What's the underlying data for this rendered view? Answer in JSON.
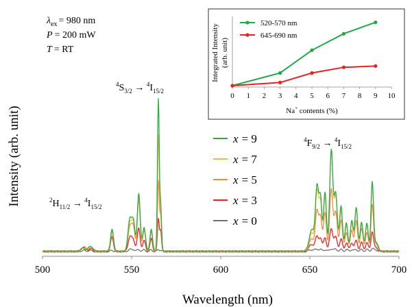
{
  "chart_data": [
    {
      "type": "line",
      "xlabel": "Wavelength (nm)",
      "ylabel": "Intensity (arb. unit)",
      "xlim": [
        500,
        700
      ],
      "xticks": [
        "500",
        "550",
        "600",
        "650",
        "700"
      ],
      "conditions": {
        "lambda_symbol": "λ",
        "lambda_sub": "ex",
        "lambda_value": "= 980 nm",
        "power_symbol": "P",
        "power_value": "= 200 mW",
        "temp_symbol": "T",
        "temp_value": "= RT"
      },
      "annotations": [
        {
          "id": "s32",
          "text": "4S3/2 → 4I15/2",
          "parts": [
            "4",
            "S",
            "3/2",
            " → ",
            "4",
            "I",
            "15/2"
          ],
          "x": 563
        },
        {
          "id": "h112",
          "text": "2H11/2 → 4I15/2",
          "parts": [
            "2",
            "H",
            "11/2",
            " → ",
            "4",
            "I",
            "15/2"
          ],
          "x": 527
        },
        {
          "id": "f92",
          "text": "4F9/2 → 4I15/2",
          "parts": [
            "4",
            "F",
            "9/2",
            " → ",
            "4",
            "I",
            "15/2"
          ],
          "x": 663
        }
      ],
      "legend": {
        "placement": "center",
        "entries": [
          {
            "label_var": "x",
            "label_value": "= 9",
            "color": "#2eaa4a"
          },
          {
            "label_var": "x",
            "label_value": "= 7",
            "color": "#f0c020"
          },
          {
            "label_var": "x",
            "label_value": "= 5",
            "color": "#f08a48"
          },
          {
            "label_var": "x",
            "label_value": "= 3",
            "color": "#e82020"
          },
          {
            "label_var": "x",
            "label_value": "= 0",
            "color": "#707070"
          }
        ]
      },
      "peaks": [
        {
          "c": 523,
          "w": 1.2,
          "a": [
            0.02,
            0.02,
            0.025,
            0.025,
            0.005
          ]
        },
        {
          "c": 527,
          "w": 1.2,
          "a": [
            0.03,
            0.025,
            0.025,
            0.015,
            0.005
          ]
        },
        {
          "c": 539,
          "w": 0.8,
          "a": [
            0.13,
            0.12,
            0.11,
            0.08,
            0.005
          ]
        },
        {
          "c": 549,
          "w": 1.0,
          "a": [
            0.18,
            0.16,
            0.14,
            0.08,
            0.01
          ]
        },
        {
          "c": 551,
          "w": 0.9,
          "a": [
            0.16,
            0.15,
            0.13,
            0.06,
            0.01
          ]
        },
        {
          "c": 554,
          "w": 0.8,
          "a": [
            0.33,
            0.31,
            0.29,
            0.13,
            0.01
          ]
        },
        {
          "c": 557,
          "w": 0.8,
          "a": [
            0.14,
            0.13,
            0.12,
            0.06,
            0.008
          ]
        },
        {
          "c": 561,
          "w": 0.7,
          "a": [
            0.13,
            0.12,
            0.11,
            0.07,
            0.008
          ]
        },
        {
          "c": 565,
          "w": 0.5,
          "a": [
            0.86,
            0.65,
            0.39,
            0.18,
            0.01
          ]
        },
        {
          "c": 566.3,
          "w": 0.5,
          "a": [
            0.25,
            0.22,
            0.2,
            0.12,
            0.008
          ]
        },
        {
          "c": 651,
          "w": 1.4,
          "a": [
            0.12,
            0.1,
            0.07,
            0.04,
            0.01
          ]
        },
        {
          "c": 654,
          "w": 0.9,
          "a": [
            0.36,
            0.33,
            0.22,
            0.08,
            0.012
          ]
        },
        {
          "c": 656,
          "w": 0.8,
          "a": [
            0.29,
            0.27,
            0.19,
            0.07,
            0.01
          ]
        },
        {
          "c": 658.5,
          "w": 0.8,
          "a": [
            0.33,
            0.31,
            0.22,
            0.08,
            0.01
          ]
        },
        {
          "c": 662,
          "w": 0.9,
          "a": [
            0.57,
            0.56,
            0.35,
            0.13,
            0.015
          ]
        },
        {
          "c": 664.5,
          "w": 0.9,
          "a": [
            0.33,
            0.31,
            0.22,
            0.08,
            0.012
          ]
        },
        {
          "c": 667.5,
          "w": 0.8,
          "a": [
            0.26,
            0.24,
            0.18,
            0.07,
            0.01
          ]
        },
        {
          "c": 670.5,
          "w": 0.8,
          "a": [
            0.16,
            0.15,
            0.11,
            0.05,
            0.01
          ]
        },
        {
          "c": 673.5,
          "w": 0.8,
          "a": [
            0.17,
            0.16,
            0.12,
            0.05,
            0.01
          ]
        },
        {
          "c": 676,
          "w": 0.8,
          "a": [
            0.25,
            0.24,
            0.17,
            0.06,
            0.01
          ]
        },
        {
          "c": 679,
          "w": 0.8,
          "a": [
            0.17,
            0.16,
            0.13,
            0.05,
            0.01
          ]
        },
        {
          "c": 682,
          "w": 0.8,
          "a": [
            0.16,
            0.15,
            0.11,
            0.05,
            0.01
          ]
        },
        {
          "c": 685,
          "w": 0.7,
          "a": [
            0.38,
            0.37,
            0.26,
            0.11,
            0.015
          ]
        },
        {
          "c": 687,
          "w": 1.2,
          "a": [
            0.05,
            0.05,
            0.04,
            0.02,
            0.008
          ]
        }
      ]
    },
    {
      "type": "line",
      "xlabel": "Na+ contents (%)",
      "xlabel_parts": [
        "Na",
        "+",
        " contents (%)"
      ],
      "ylabel": "Integrated Intensity (arb. unit)",
      "ylabel_line1": "Integrated Intensity",
      "ylabel_line2": "(arb. unit)",
      "xlim": [
        0,
        10
      ],
      "ylim": [
        0,
        1.05
      ],
      "xticks": [
        "0",
        "1",
        "2",
        "3",
        "4",
        "5",
        "6",
        "7",
        "8",
        "9",
        "10"
      ],
      "x": [
        0,
        3,
        5,
        7,
        9
      ],
      "series": [
        {
          "name": "520-570 nm",
          "color": "#20a848",
          "values": [
            0.0,
            0.2,
            0.56,
            0.82,
            1.0
          ]
        },
        {
          "name": "645-690 nm",
          "color": "#e82020",
          "values": [
            0.0,
            0.05,
            0.2,
            0.29,
            0.31
          ]
        }
      ],
      "legend": {
        "placement": "top-left"
      }
    }
  ]
}
